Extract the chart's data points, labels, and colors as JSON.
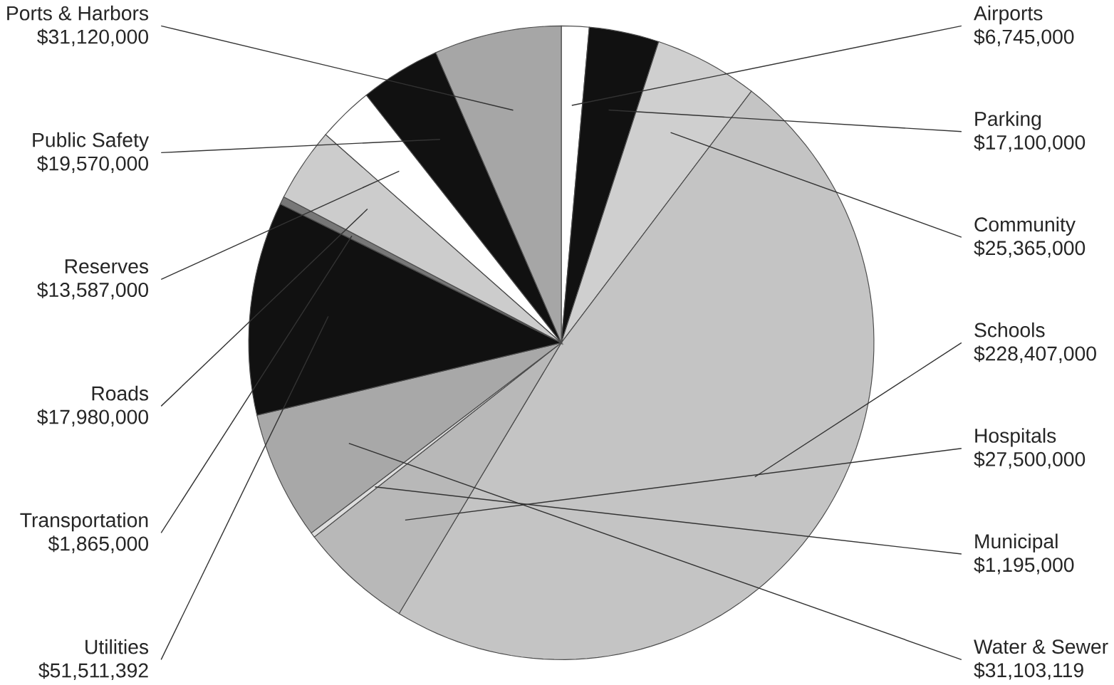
{
  "chart_data": {
    "type": "pie",
    "categories": [
      "Airports",
      "Parking",
      "Community",
      "Schools",
      "Hospitals",
      "Municipal",
      "Water & Sewer",
      "Utilities",
      "Transportation",
      "Roads",
      "Reserves",
      "Public Safety",
      "Ports & Harbors"
    ],
    "values": [
      6745000,
      17100000,
      25365000,
      228407000,
      27500000,
      1195000,
      31103119,
      51511392,
      1865000,
      17980000,
      13587000,
      19570000,
      31120000
    ],
    "value_labels": [
      "$6,745,000",
      "$17,100,000",
      "$25,365,000",
      "$228,407,000",
      "$27,500,000",
      "$1,195,000",
      "$31,103,119",
      "$51,511,392",
      "$1,865,000",
      "$17,980,000",
      "$13,587,000",
      "$19,570,000",
      "$31,120,000"
    ],
    "colors": [
      "#ffffff",
      "#111111",
      "#cfcfcf",
      "#c4c4c4",
      "#b8b8b8",
      "#dddddd",
      "#a8a8a8",
      "#111111",
      "#777777",
      "#cccccc",
      "#ffffff",
      "#111111",
      "#a6a6a6"
    ]
  }
}
